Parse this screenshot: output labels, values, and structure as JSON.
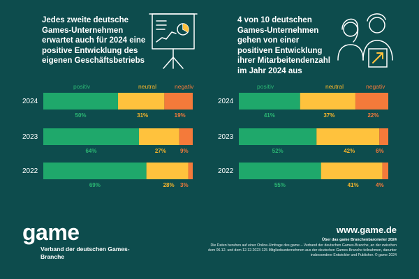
{
  "chart_data": [
    {
      "type": "bar",
      "stacked": true,
      "orientation": "horizontal",
      "title": "Jedes zweite deutsche Games-Unternehmen erwartet auch für 2024 eine positive Entwicklung des eigenen Geschäftsbetriebs",
      "categories": [
        "2024",
        "2023",
        "2022"
      ],
      "series": [
        {
          "name": "positiv",
          "values": [
            50,
            64,
            69
          ],
          "color": "#1fa86b",
          "label_color": "#2bb673"
        },
        {
          "name": "neutral",
          "values": [
            31,
            27,
            28
          ],
          "color": "#ffc23d",
          "label_color": "#f7b52b"
        },
        {
          "name": "negativ",
          "values": [
            19,
            9,
            3
          ],
          "color": "#f47a3a",
          "label_color": "#f47a3a"
        }
      ],
      "labels": [
        [
          "50%",
          "31%",
          "19%"
        ],
        [
          "64%",
          "27%",
          "9%"
        ],
        [
          "69%",
          "28%",
          "3%"
        ]
      ],
      "xlim": [
        0,
        100
      ],
      "grid": false,
      "legend": "top"
    },
    {
      "type": "bar",
      "stacked": true,
      "orientation": "horizontal",
      "title": "4 von 10 deutschen Games-Unternehmen gehen von einer positiven Entwicklung ihrer Mitarbeitendenzahl im Jahr 2024 aus",
      "categories": [
        "2024",
        "2023",
        "2022"
      ],
      "series": [
        {
          "name": "positiv",
          "values": [
            41,
            52,
            55
          ],
          "color": "#1fa86b",
          "label_color": "#2bb673"
        },
        {
          "name": "neutral",
          "values": [
            37,
            42,
            41
          ],
          "color": "#ffc23d",
          "label_color": "#f7b52b"
        },
        {
          "name": "negativ",
          "values": [
            22,
            6,
            4
          ],
          "color": "#f47a3a",
          "label_color": "#f47a3a"
        }
      ],
      "labels": [
        [
          "41%",
          "37%",
          "22%"
        ],
        [
          "52%",
          "42%",
          "6%"
        ],
        [
          "55%",
          "41%",
          "4%"
        ]
      ],
      "xlim": [
        0,
        100
      ],
      "grid": false,
      "legend": "top"
    }
  ],
  "footer": {
    "logo": "game",
    "org_name": "Verband der deutschen Games-Branche",
    "website": "www.game.de",
    "source_title": "Über das game Branchenbarometer 2024",
    "source_text": "Die Daten beruhen auf einer Online-Umfrage des game – Verband der deutschen Games-Branche, an der zwischen dem 06.12. und dem 12.12.2023 125 Mitgliedsunternehmen aus der deutschen Games-Branche teilnahmen, darunter insbesondere Entwickler und Publisher. © game 2024"
  },
  "icons": {
    "left": "presentation-board-icon",
    "right": "employees-growth-icon"
  },
  "colors": {
    "background": "#0d4c4d",
    "positive": "#1fa86b",
    "neutral": "#ffc23d",
    "negative": "#f47a3a"
  }
}
